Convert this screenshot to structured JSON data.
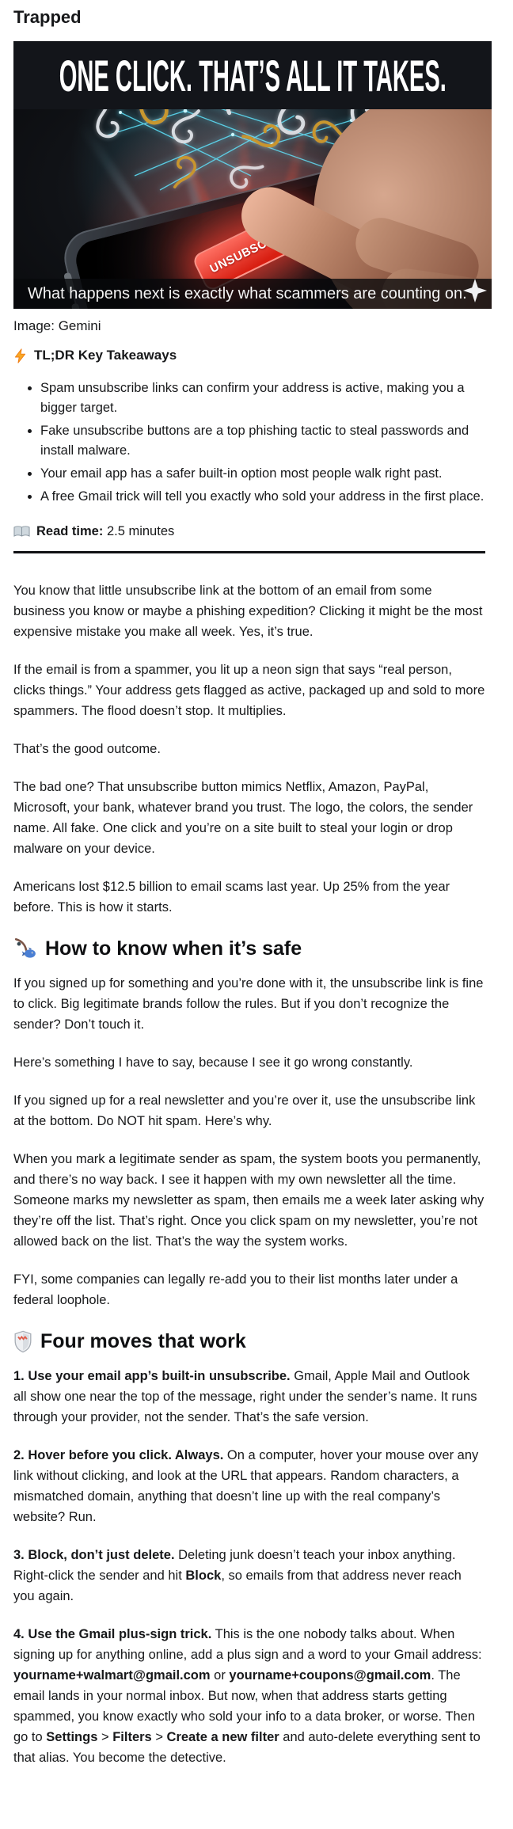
{
  "page": {
    "title": "Trapped"
  },
  "hero": {
    "headline": "ONE CLICK. THAT’S ALL IT TAKES.",
    "unsubscribe_button_label": "UNSUBSCRIBE",
    "caption": "What happens next is exactly what scammers are counting on.",
    "credit": "Image: Gemini"
  },
  "icons": {
    "tldr": "lightning-icon",
    "read_time": "open-book-icon",
    "section_safe": "fishing-pole-icon",
    "section_moves": "shield-icon",
    "hero_corner": "sparkle-icon"
  },
  "colors": {
    "accent_red": "#d81f12",
    "hologram_teal": "#5fe6ff",
    "hook_gold": "#c8972f",
    "hook_silver": "#d8dce1",
    "text": "#17181a"
  },
  "tldr": {
    "heading": "TL;DR Key Takeaways",
    "bullets": [
      "Spam unsubscribe links can confirm your address is active, making you a bigger target.",
      "Fake unsubscribe buttons are a top phishing tactic to steal passwords and install malware.",
      "Your email app has a safer built-in option most people walk right past.",
      "A free Gmail trick will tell you exactly who sold your address in the first place."
    ]
  },
  "read_time": {
    "label": "Read time:",
    "value": "2.5 minutes"
  },
  "article": {
    "intro": [
      "You know that little unsubscribe link at the bottom of an email from some business you know or maybe a phishing expedition? Clicking it might be the most expensive mistake you make all week. Yes, it’s true.",
      "If the email is from a spammer, you lit up a neon sign that says “real person, clicks things.” Your address gets flagged as active, packaged up and sold to more spammers. The flood doesn’t stop. It multiplies.",
      "That’s the good outcome.",
      "The bad one? That unsubscribe button mimics Netflix, Amazon, PayPal, Microsoft, your bank, whatever brand you trust. The logo, the colors, the sender name. All fake. One click and you’re on a site built to steal your login or drop malware on your device.",
      "Americans lost $12.5 billion to email scams last year. Up 25% from the year before. This is how it starts."
    ],
    "section_safe": {
      "heading": "How to know when it’s safe",
      "paragraphs": [
        "If you signed up for something and you’re done with it, the unsubscribe link is fine to click. Big legitimate brands follow the rules. But if you don’t recognize the sender? Don’t touch it.",
        "Here’s something I have to say, because I see it go wrong constantly.",
        "If you signed up for a real newsletter and you’re over it, use the unsubscribe link at the bottom. Do NOT hit spam. Here’s why.",
        "When you mark a legitimate sender as spam, the system boots you permanently, and there’s no way back. I see it happen with my own newsletter all the time. Someone marks my newsletter as spam, then emails me a week later asking why they’re off the list. That’s right. Once you click spam on my newsletter, you’re not allowed back on the list. That’s the way the system works.",
        "FYI, some companies can legally re-add you to their list months later under a federal loophole."
      ]
    },
    "section_moves": {
      "heading": "Four moves that work",
      "moves": [
        {
          "runs": [
            {
              "t": "1. Use your email app’s built-in unsubscribe.",
              "b": true
            },
            {
              "t": " Gmail, Apple Mail and Outlook all show one near the top of the message, right under the sender’s name. It runs through your provider, not the sender. That’s the safe version.",
              "b": false
            }
          ]
        },
        {
          "runs": [
            {
              "t": "2. Hover before you click. Always.",
              "b": true
            },
            {
              "t": " On a computer, hover your mouse over any link without clicking, and look at the URL that appears. Random characters, a mismatched domain, anything that doesn’t line up with the real company’s website? Run.",
              "b": false
            }
          ]
        },
        {
          "runs": [
            {
              "t": "3. Block, don’t just delete.",
              "b": true
            },
            {
              "t": " Deleting junk doesn’t teach your inbox anything. Right-click the sender and hit ",
              "b": false
            },
            {
              "t": "Block",
              "b": true
            },
            {
              "t": ", so emails from that address never reach you again.",
              "b": false
            }
          ]
        },
        {
          "runs": [
            {
              "t": "4. Use the Gmail plus-sign trick.",
              "b": true
            },
            {
              "t": " This is the one nobody talks about. When signing up for anything online, add a plus sign and a word to your Gmail address: ",
              "b": false
            },
            {
              "t": "yourname+walmart@gmail.com",
              "b": true
            },
            {
              "t": " or ",
              "b": false
            },
            {
              "t": "yourname+coupons@gmail.com",
              "b": true
            },
            {
              "t": ". The email lands in your normal inbox. But now, when that address starts getting spammed, you know exactly who sold your info to a data broker, or worse. Then go to ",
              "b": false
            },
            {
              "t": "Settings",
              "b": true
            },
            {
              "t": " > ",
              "b": false
            },
            {
              "t": "Filters",
              "b": true
            },
            {
              "t": " > ",
              "b": false
            },
            {
              "t": "Create a new filter",
              "b": true
            },
            {
              "t": " and auto-delete everything sent to that alias. You become the detective.",
              "b": false
            }
          ]
        }
      ]
    }
  }
}
